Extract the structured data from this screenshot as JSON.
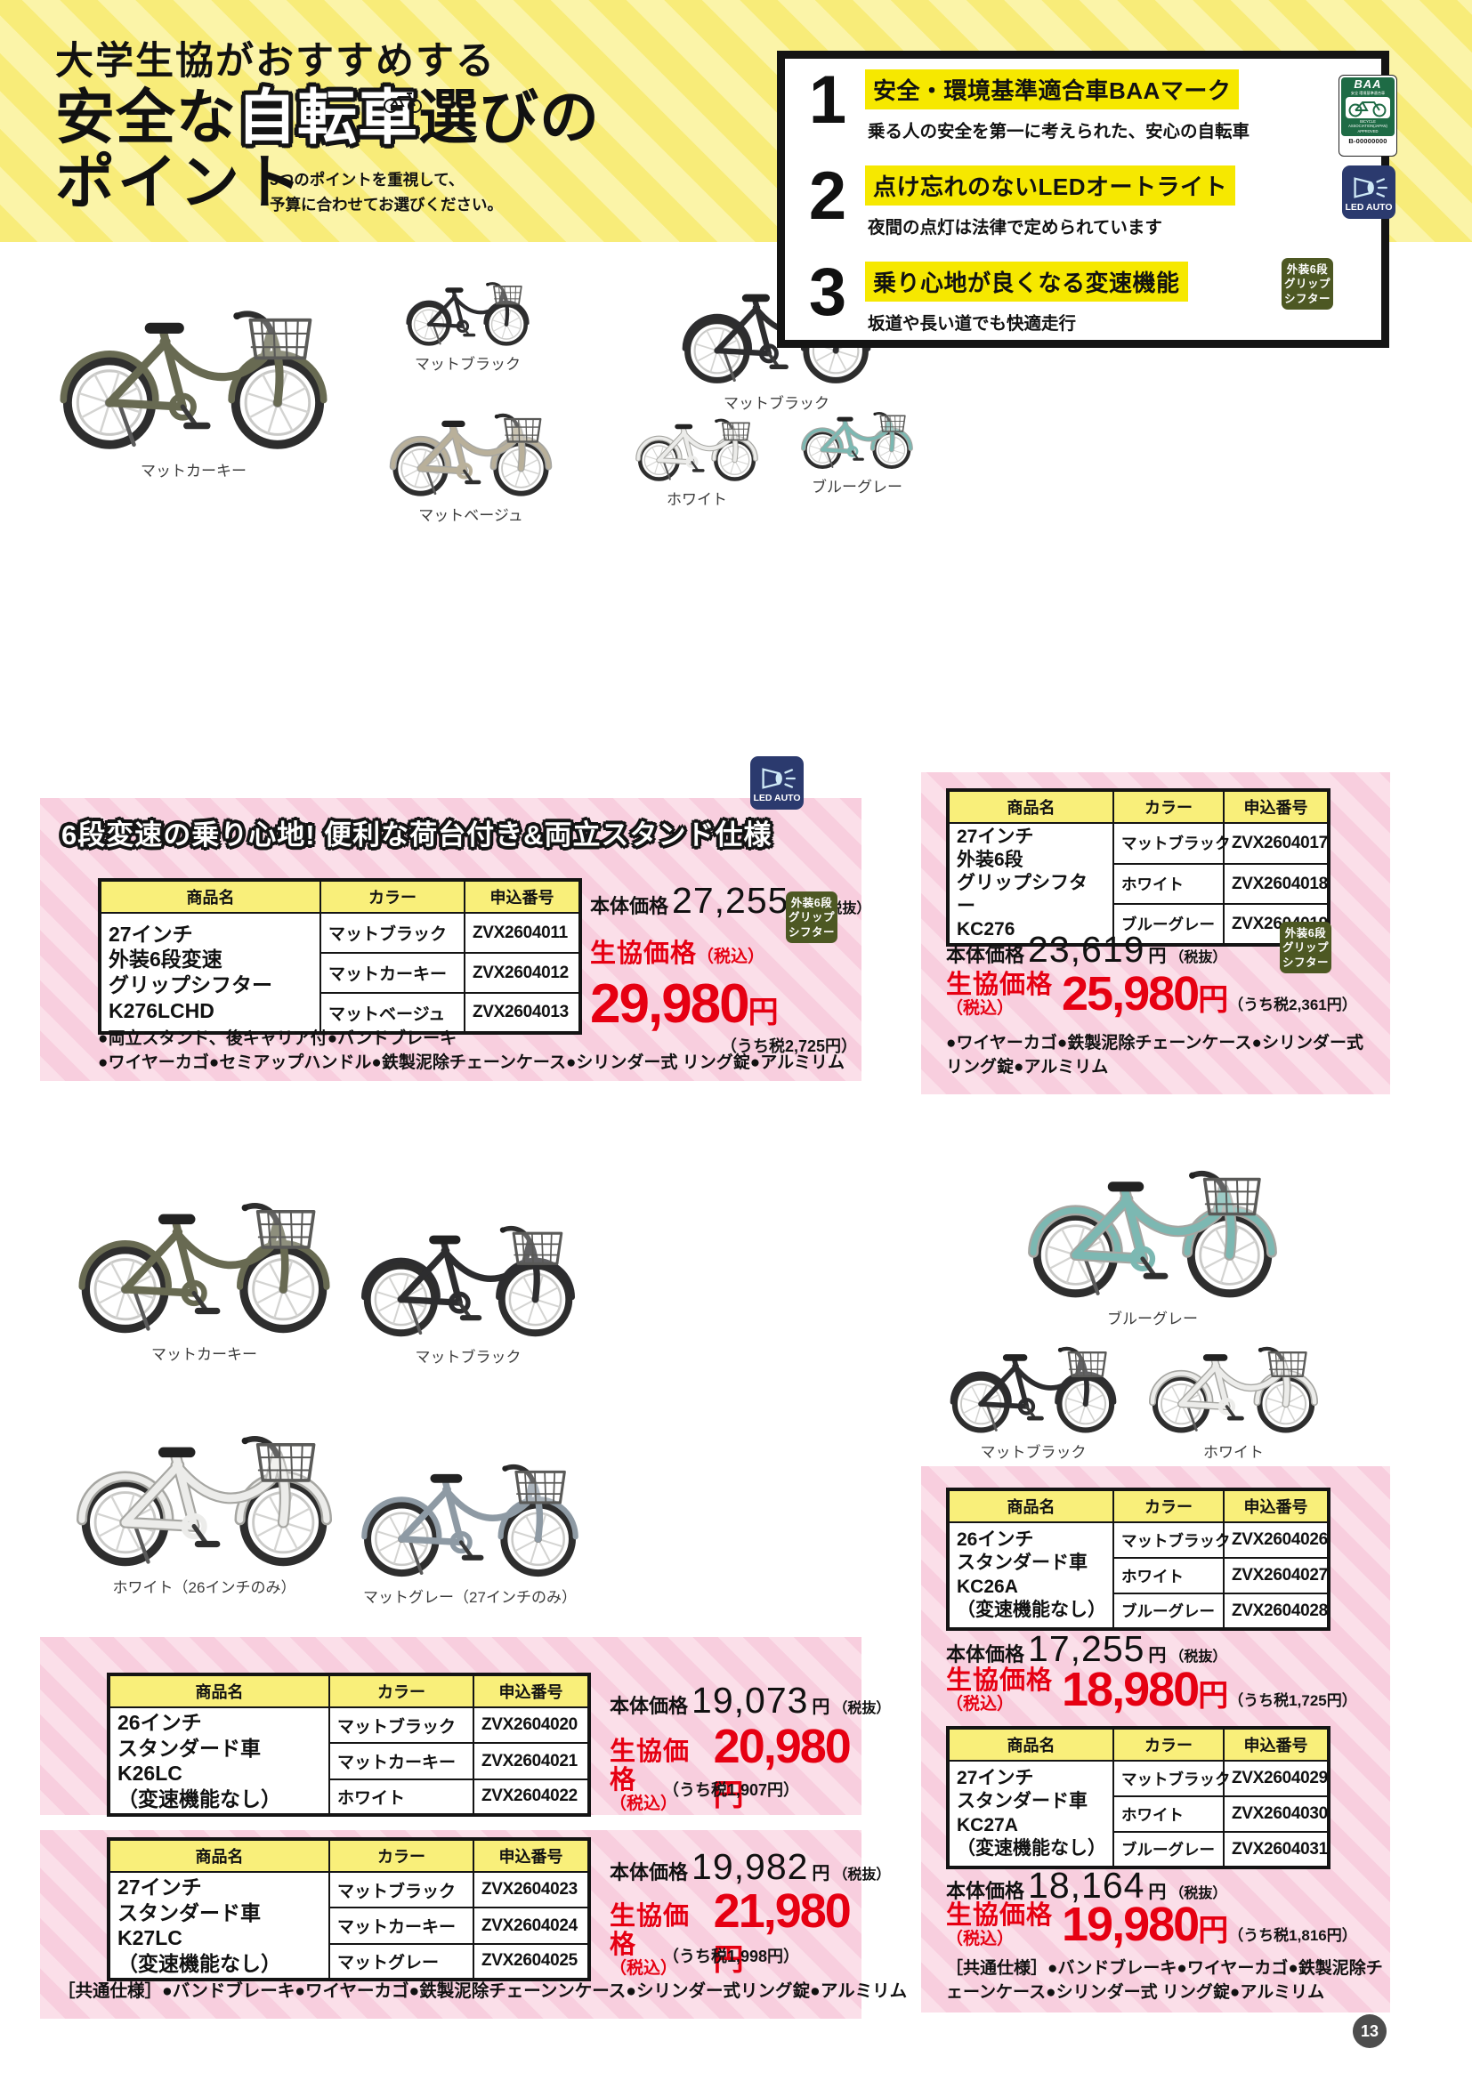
{
  "page": {
    "number": "13"
  },
  "header": {
    "title_line1": "大学生協がおすすめする",
    "title_line2_prefix": "安全な",
    "title_line2_highlight": "自転車",
    "title_line2_suffix": "選びの",
    "title_line3": "ポイント",
    "subtitle_line1": "3つのポイントを重視して、",
    "subtitle_line2": "予算に合わせてお選びください。",
    "points": [
      {
        "num": "1",
        "title": "安全・環境基準適合車BAAマーク",
        "desc": "乗る人の安全を第一に考えられた、安心の自転車"
      },
      {
        "num": "2",
        "title": "点け忘れのないLEDオートライト",
        "desc": "夜間の点灯は法律で定められています"
      },
      {
        "num": "3",
        "title": "乗り心地が良くなる変速機能",
        "desc": "坂道や長い道でも快適走行"
      }
    ]
  },
  "badges": {
    "led_label": "LED AUTO",
    "shifter_lines": [
      "外装6段",
      "グリップ",
      "シフター"
    ],
    "baa": {
      "title": "BAA",
      "sub": "安全 環境基準適合車",
      "org1": "BICYCLE",
      "org2": "ASSOCIATION(JAPAN)",
      "org3": "APPROVED",
      "code": "B-00000000"
    }
  },
  "labels": {
    "th_name": "商品名",
    "th_color": "カラー",
    "th_code": "申込番号",
    "base_price": "本体価格",
    "yen": "円",
    "tax_excl": "（税抜）",
    "coop_price": "生協価格",
    "tax_incl": "（税込）"
  },
  "photos": {
    "g1": [
      {
        "label": "マットカーキー",
        "color": "#686a52"
      },
      {
        "label": "マットブラック",
        "color": "#2d2d2f"
      },
      {
        "label": "マットベージュ",
        "color": "#b9b09a"
      }
    ],
    "g2": [
      {
        "label": "マットブラック",
        "color": "#2d2d2f"
      },
      {
        "label": "ホワイト",
        "color": "#ececea"
      },
      {
        "label": "ブルーグレー",
        "color": "#7cb8b2"
      }
    ],
    "g3": [
      {
        "label": "マットカーキー",
        "color": "#686a52"
      },
      {
        "label": "マットブラック",
        "color": "#2d2d2f"
      },
      {
        "label": "ホワイト（26インチのみ）",
        "color": "#ececea"
      },
      {
        "label": "マットグレー（27インチのみ）",
        "color": "#8e9aa4"
      }
    ],
    "g4": [
      {
        "label": "ブルーグレー",
        "color": "#7cb8b2"
      },
      {
        "label": "マットブラック",
        "color": "#2d2d2f"
      },
      {
        "label": "ホワイト",
        "color": "#ececea"
      }
    ]
  },
  "sections": {
    "s1": {
      "banner": "6段変速の乗り心地! 便利な荷台付き&両立スタンド仕様",
      "name_lines": [
        "27インチ",
        "外装6段変速",
        "グリップシフター",
        "K276LCHD"
      ],
      "rows": [
        {
          "color": "マットブラック",
          "code": "ZVX2604011"
        },
        {
          "color": "マットカーキー",
          "code": "ZVX2604012"
        },
        {
          "color": "マットベージュ",
          "code": "ZVX2604013"
        }
      ],
      "base_price": "27,255",
      "coop_price": "29,980",
      "tax_amount": "（うち税2,725円）",
      "features1": "●両立スタンド、後キャリア付●バンドブレーキ",
      "features2": "●ワイヤーカゴ●セミアップハンドル●鉄製泥除チェーンケース●シリンダー式 リング錠●アルミリム"
    },
    "s2": {
      "name_lines": [
        "27インチ",
        "外装6段",
        "グリップシフター",
        "KC276"
      ],
      "rows": [
        {
          "color": "マットブラック",
          "code": "ZVX2604017"
        },
        {
          "color": "ホワイト",
          "code": "ZVX2604018"
        },
        {
          "color": "ブルーグレー",
          "code": "ZVX2604019"
        }
      ],
      "base_price": "23,619",
      "coop_price": "25,980",
      "tax_amount": "（うち税2,361円）",
      "features1": "●ワイヤーカゴ●鉄製泥除チェーンケース●シリンダー式",
      "features2": "リング錠●アルミリム"
    },
    "s3": {
      "name_lines": [
        "26インチ",
        "スタンダード車",
        "K26LC",
        "（変速機能なし）"
      ],
      "rows": [
        {
          "color": "マットブラック",
          "code": "ZVX2604020"
        },
        {
          "color": "マットカーキー",
          "code": "ZVX2604021"
        },
        {
          "color": "ホワイト",
          "code": "ZVX2604022"
        }
      ],
      "base_price": "19,073",
      "coop_price": "20,980",
      "tax_amount": "（うち税1,907円）"
    },
    "s4": {
      "name_lines": [
        "27インチ",
        "スタンダード車",
        "K27LC",
        "（変速機能なし）"
      ],
      "rows": [
        {
          "color": "マットブラック",
          "code": "ZVX2604023"
        },
        {
          "color": "マットカーキー",
          "code": "ZVX2604024"
        },
        {
          "color": "マットグレー",
          "code": "ZVX2604025"
        }
      ],
      "base_price": "19,982",
      "coop_price": "21,980",
      "tax_amount": "（うち税1,998円）",
      "common": "［共通仕様］●バンドブレーキ●ワイヤーカゴ●鉄製泥除チェーンンケース●シリンダー式リング錠●アルミリム"
    },
    "s5": {
      "name_lines": [
        "26インチ",
        "スタンダード車",
        "KC26A",
        "（変速機能なし）"
      ],
      "rows": [
        {
          "color": "マットブラック",
          "code": "ZVX2604026"
        },
        {
          "color": "ホワイト",
          "code": "ZVX2604027"
        },
        {
          "color": "ブルーグレー",
          "code": "ZVX2604028"
        }
      ],
      "base_price": "17,255",
      "coop_price": "18,980",
      "tax_amount": "（うち税1,725円）"
    },
    "s6": {
      "name_lines": [
        "27インチ",
        "スタンダード車",
        "KC27A",
        "（変速機能なし）"
      ],
      "rows": [
        {
          "color": "マットブラック",
          "code": "ZVX2604029"
        },
        {
          "color": "ホワイト",
          "code": "ZVX2604030"
        },
        {
          "color": "ブルーグレー",
          "code": "ZVX2604031"
        }
      ],
      "base_price": "18,164",
      "coop_price": "19,980",
      "tax_amount": "（うち税1,816円）",
      "common1": "［共通仕様］●バンドブレーキ●ワイヤーカゴ●鉄製泥除チ",
      "common2": "ェーンケース●シリンダー式 リング錠●アルミリム"
    }
  }
}
